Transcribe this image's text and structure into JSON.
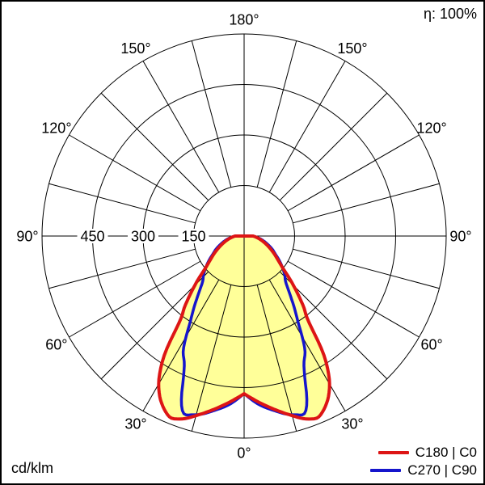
{
  "corner_labels": {
    "efficiency": "η: 100%",
    "unit": "cd/klm"
  },
  "legend": [
    {
      "label": "C180 | C0",
      "color": "#dd1515"
    },
    {
      "label": "C270 | C90",
      "color": "#1515cc"
    }
  ],
  "chart_data": {
    "type": "polar",
    "subtype": "photometric-luminous-intensity-distribution",
    "title": "",
    "unit": "cd/klm",
    "efficiency_percent": 100,
    "grid": {
      "color": "#000000",
      "angle_step_deg": 15,
      "angle_tick_deg": [
        0,
        30,
        60,
        90,
        120,
        150,
        180
      ],
      "angle_tick_labels": [
        "0°",
        "30°",
        "60°",
        "90°",
        "120°",
        "150°",
        "180°"
      ],
      "radial_tick_values": [
        150,
        300,
        450
      ],
      "radial_tick_labels": [
        "150",
        "300",
        "450"
      ],
      "radial_max": 600
    },
    "fill_color": "#ffff99",
    "series": [
      {
        "name": "C180 | C0",
        "color": "#dd1515",
        "symmetric": true,
        "gamma_deg": [
          0,
          5,
          10,
          15,
          18,
          20,
          22,
          24,
          26,
          28,
          31,
          34,
          37,
          40,
          43,
          46,
          50,
          55,
          60,
          65,
          70,
          75,
          80,
          85,
          90
        ],
        "intensity": [
          468,
          495,
          523,
          552,
          570,
          578,
          582,
          572,
          556,
          535,
          490,
          420,
          318,
          275,
          232,
          195,
          152,
          122,
          102,
          84,
          69,
          56,
          45,
          35,
          27
        ]
      },
      {
        "name": "C270 | C90",
        "color": "#1515cc",
        "symmetric": true,
        "gamma_deg": [
          0,
          5,
          10,
          13,
          16,
          19,
          21,
          23,
          25,
          28,
          32,
          35,
          38,
          42,
          46,
          50,
          55,
          60,
          65,
          70,
          75,
          80,
          85,
          90
        ],
        "intensity": [
          468,
          502,
          527,
          542,
          552,
          555,
          520,
          462,
          420,
          385,
          303,
          260,
          222,
          185,
          168,
          150,
          128,
          107,
          92,
          76,
          62,
          49,
          36,
          25
        ]
      }
    ]
  },
  "geometry_note": "radial axis labeled on left horizontal only; curves symmetric about vertical axis; notch at 0 deg nadir"
}
